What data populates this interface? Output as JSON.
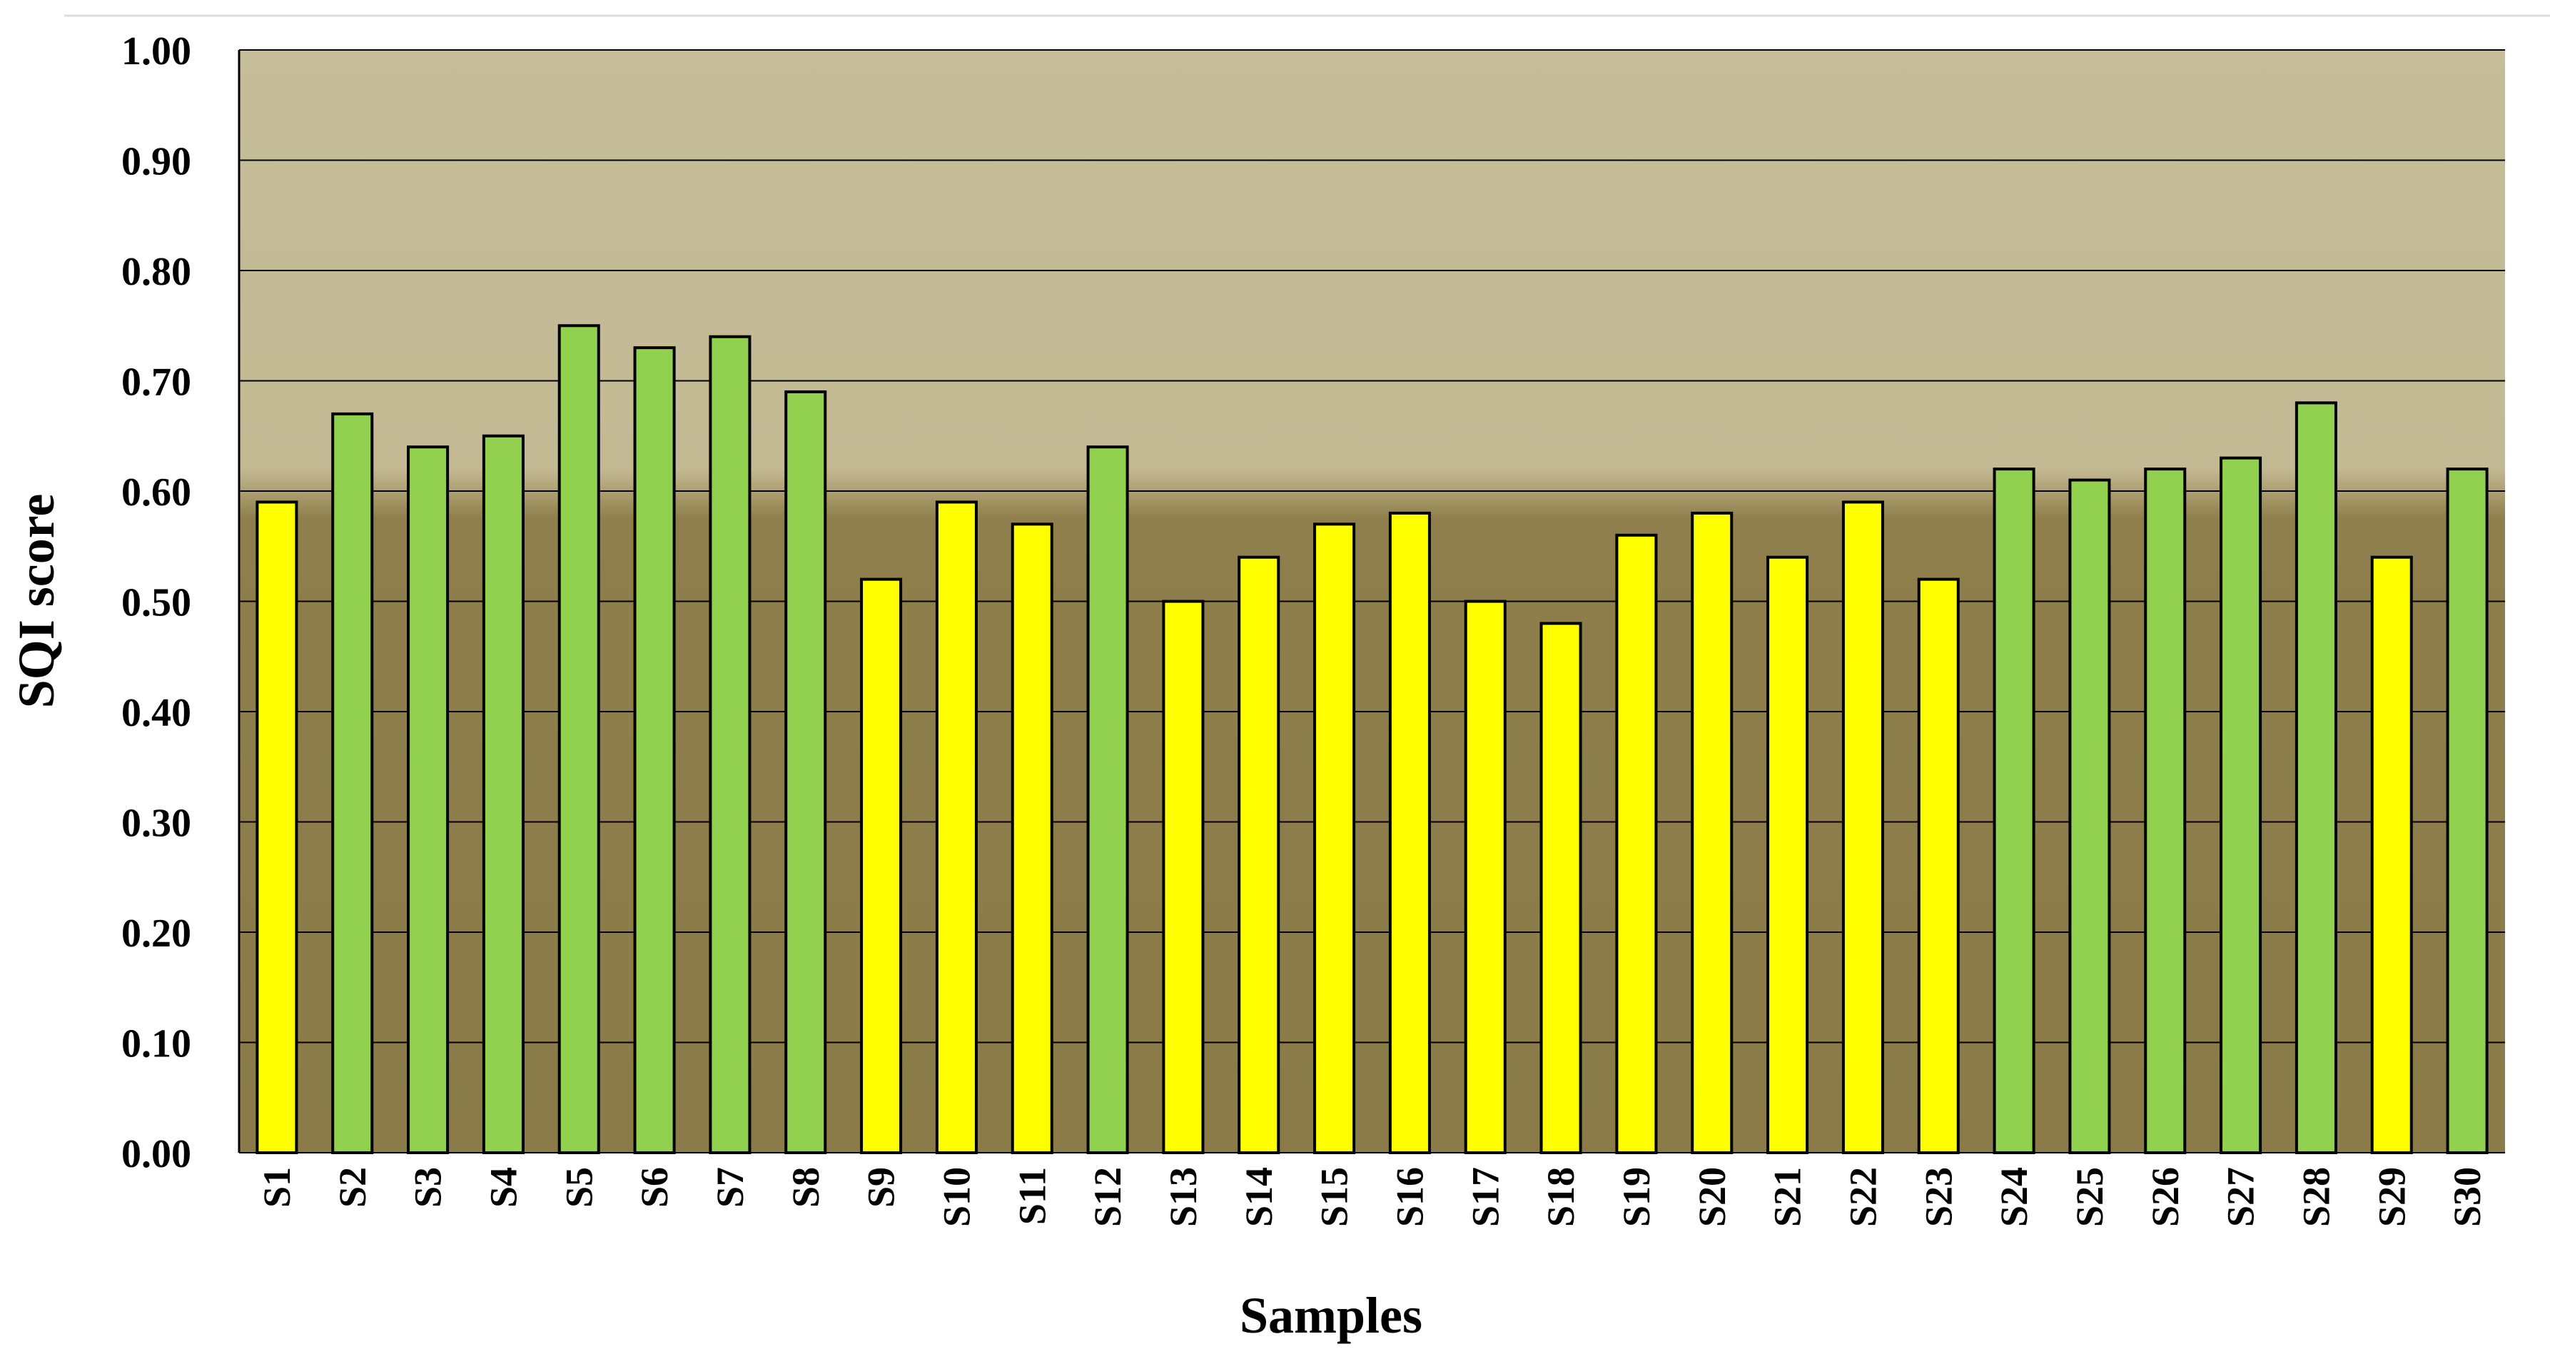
{
  "chart_data": {
    "type": "bar",
    "title": "",
    "xlabel": "Samples",
    "ylabel": "SQI score",
    "ylim": [
      0,
      1
    ],
    "yticks": [
      "0.00",
      "0.10",
      "0.20",
      "0.30",
      "0.40",
      "0.50",
      "0.60",
      "0.70",
      "0.80",
      "0.90",
      "1.00"
    ],
    "grid": true,
    "legend": "none",
    "threshold": 0.6,
    "colors": {
      "above_threshold": "#92d050",
      "below_threshold": "#ffff00",
      "plot_upper_band": "#c6bd99",
      "plot_lower_band": "#8e7f4c",
      "bar_outline": "#000000"
    },
    "categories": [
      "S1",
      "S2",
      "S3",
      "S4",
      "S5",
      "S6",
      "S7",
      "S8",
      "S9",
      "S10",
      "S11",
      "S12",
      "S13",
      "S14",
      "S15",
      "S16",
      "S17",
      "S18",
      "S19",
      "S20",
      "S21",
      "S22",
      "S23",
      "S24",
      "S25",
      "S26",
      "S27",
      "S28",
      "S29",
      "S30"
    ],
    "values": [
      0.59,
      0.67,
      0.64,
      0.65,
      0.75,
      0.73,
      0.74,
      0.69,
      0.52,
      0.59,
      0.57,
      0.64,
      0.5,
      0.54,
      0.57,
      0.58,
      0.5,
      0.48,
      0.56,
      0.58,
      0.54,
      0.59,
      0.52,
      0.62,
      0.61,
      0.62,
      0.63,
      0.68,
      0.54,
      0.62
    ],
    "bar_colors": [
      "below",
      "above",
      "above",
      "above",
      "above",
      "above",
      "above",
      "above",
      "below",
      "below",
      "below",
      "above",
      "below",
      "below",
      "below",
      "below",
      "below",
      "below",
      "below",
      "below",
      "below",
      "below",
      "below",
      "above",
      "above",
      "above",
      "above",
      "above",
      "below",
      "above"
    ]
  }
}
